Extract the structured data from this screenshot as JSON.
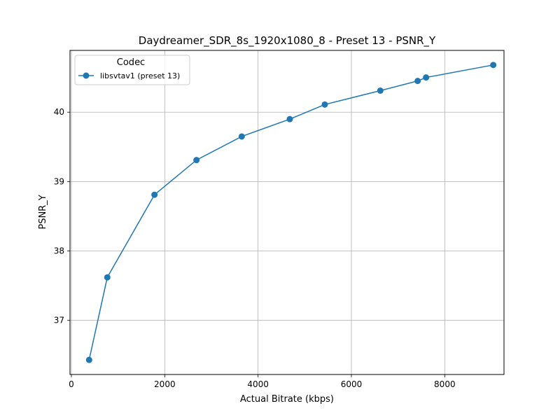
{
  "chart_data": {
    "type": "line",
    "title": "Daydreamer_SDR_8s_1920x1080_8 - Preset 13 - PSNR_Y",
    "xlabel": "Actual Bitrate (kbps)",
    "ylabel": "PSNR_Y",
    "xlim": [
      -30,
      9270
    ],
    "ylim": [
      36.22,
      40.89
    ],
    "xticks": [
      0,
      2000,
      4000,
      6000,
      8000
    ],
    "yticks": [
      37,
      38,
      39,
      40
    ],
    "grid": true,
    "legend": {
      "title": "Codec",
      "placement": "upper-left"
    },
    "series": [
      {
        "name": "libsvtav1 (preset 13)",
        "color": "#1f77b4",
        "marker": "circle",
        "x": [
          380,
          770,
          1780,
          2680,
          3650,
          4680,
          5430,
          6620,
          7420,
          7600,
          9040
        ],
        "y": [
          36.43,
          37.62,
          38.81,
          39.31,
          39.65,
          39.9,
          40.11,
          40.31,
          40.45,
          40.5,
          40.68
        ]
      }
    ]
  }
}
